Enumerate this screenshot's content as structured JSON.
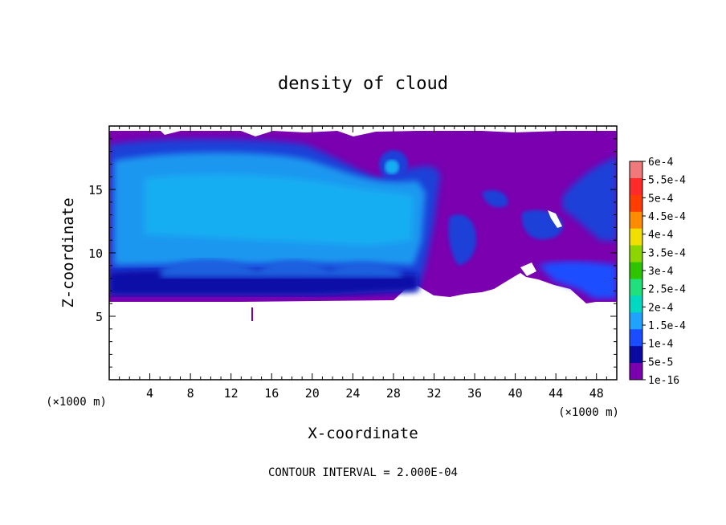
{
  "chart_data": {
    "type": "heatmap",
    "title": "density of cloud",
    "xlabel": "X-coordinate",
    "ylabel": "Z-coordinate",
    "x_unit": "(×1000 m)",
    "z_unit": "(×1000 m)",
    "xlim": [
      0,
      50
    ],
    "ylim": [
      0,
      20
    ],
    "x_ticks": [
      4,
      8,
      12,
      16,
      20,
      24,
      28,
      32,
      36,
      40,
      44,
      48
    ],
    "y_ticks": [
      5,
      10,
      15
    ],
    "footer": "CONTOUR INTERVAL = 2.000E-04",
    "colorbar": {
      "labels": [
        "6e-4",
        "5.5e-4",
        "5e-4",
        "4.5e-4",
        "4e-4",
        "3.5e-4",
        "3e-4",
        "2.5e-4",
        "2e-4",
        "1.5e-4",
        "1e-4",
        "5e-5",
        "1e-16"
      ],
      "colors": [
        "#f07a7a",
        "#ff2a2a",
        "#ff3d00",
        "#ff8c00",
        "#f0e000",
        "#8bd600",
        "#2ec400",
        "#1fe07a",
        "#00d8c0",
        "#1fa3ff",
        "#1a4dff",
        "#0a0aa0",
        "#7a00b0"
      ]
    },
    "field": {
      "cloud_base_z": 6.2,
      "cloud_top_z": 19.5,
      "anvil_core_x": [
        0,
        30
      ],
      "anvil_core_z": [
        8,
        18
      ],
      "anvil_core_value": 0.00015,
      "background_value": 1e-16
    }
  }
}
